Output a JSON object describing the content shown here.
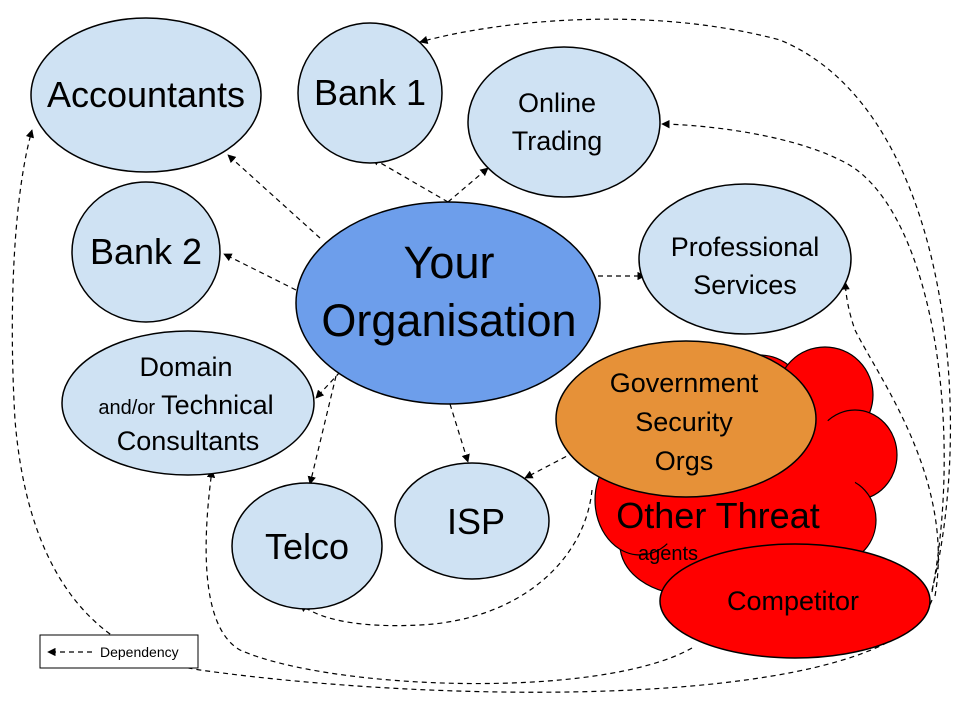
{
  "colors": {
    "light_node": "#cfe2f3",
    "center_node": "#6d9eeb",
    "government_node": "#e69138",
    "threat_red": "#ff0000"
  },
  "nodes": {
    "accountants": "Accountants",
    "bank1": "Bank 1",
    "online_trading": [
      "Online",
      "Trading"
    ],
    "bank2": "Bank 2",
    "your_organisation": [
      "Your",
      "Organisation"
    ],
    "professional_services": [
      "Professional",
      "Services"
    ],
    "domain_consultants": {
      "line1": "Domain",
      "line2_small": "and/or",
      "line2_main": "Technical",
      "line3": "Consultants"
    },
    "government": [
      "Government",
      "Security",
      "Orgs"
    ],
    "telco": "Telco",
    "isp": "ISP",
    "other_threat": {
      "title": "Other Threat",
      "subtitle": "agents"
    },
    "competitor": "Competitor"
  },
  "legend": {
    "label": "Dependency"
  }
}
